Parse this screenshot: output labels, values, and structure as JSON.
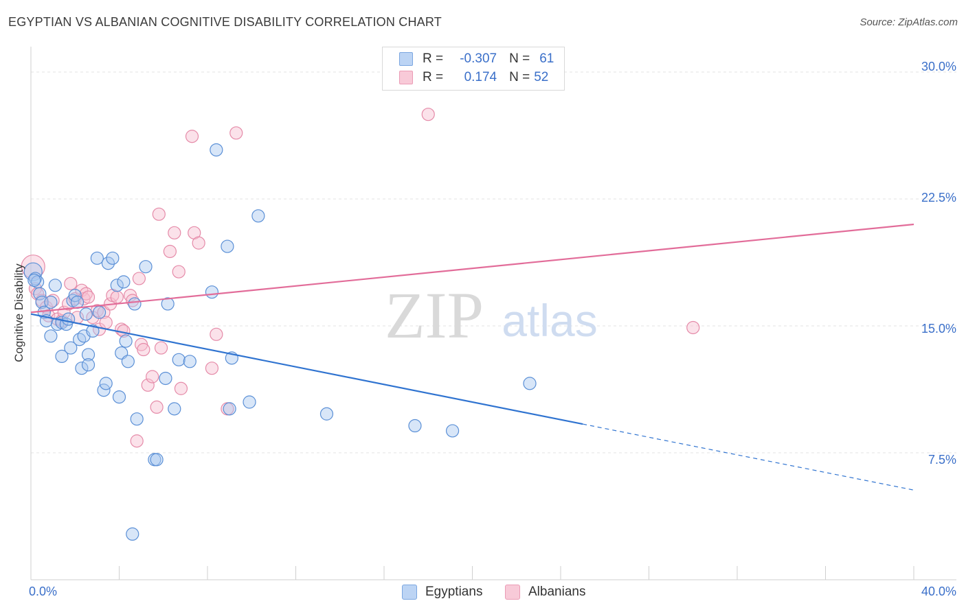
{
  "title": "EGYPTIAN VS ALBANIAN COGNITIVE DISABILITY CORRELATION CHART",
  "source": "Source: ZipAtlas.com",
  "watermark": {
    "zip": "ZIP",
    "atlas": "atlas"
  },
  "legend_top": {
    "rows": [
      {
        "r_label": "R =",
        "r_value": "-0.307",
        "n_label": "N =",
        "n_value": "61"
      },
      {
        "r_label": "R =",
        "r_value": "0.174",
        "n_label": "N =",
        "n_value": "52"
      }
    ]
  },
  "colors": {
    "egyptians_fill": "#a9c8f0",
    "egyptians_stroke": "#5a8fd6",
    "egyptians_line": "#2f73d0",
    "albanians_fill": "#f6bfd0",
    "albanians_stroke": "#e58aa8",
    "albanians_line": "#e26c99",
    "axis_label": "#3a6fc9",
    "grid": "#e3e3e3"
  },
  "chart_data": {
    "type": "scatter",
    "title": "EGYPTIAN VS ALBANIAN COGNITIVE DISABILITY CORRELATION CHART",
    "xlabel": "",
    "ylabel": "Cognitive Disability",
    "xlim": [
      0,
      40
    ],
    "ylim": [
      0,
      31.5
    ],
    "x_tick_labels": [
      "0.0%",
      "40.0%"
    ],
    "y_ticks": [
      7.5,
      15.0,
      22.5,
      30.0
    ],
    "y_tick_labels": [
      "7.5%",
      "15.0%",
      "22.5%",
      "30.0%"
    ],
    "grid": true,
    "legend_position": "top-center",
    "series": [
      {
        "name": "Egyptians",
        "r": -0.307,
        "n": 61,
        "trend": {
          "x": [
            0,
            25
          ],
          "y": [
            15.7,
            9.2
          ],
          "dashed_extension": {
            "x": [
              25,
              40
            ],
            "y": [
              9.2,
              5.3
            ]
          }
        },
        "points": [
          [
            0.1,
            18.2
          ],
          [
            0.2,
            17.8
          ],
          [
            0.3,
            17.6
          ],
          [
            0.4,
            16.9
          ],
          [
            0.5,
            16.4
          ],
          [
            0.6,
            15.8
          ],
          [
            0.7,
            15.3
          ],
          [
            0.9,
            16.4
          ],
          [
            0.9,
            14.4
          ],
          [
            1.1,
            17.4
          ],
          [
            1.2,
            15.1
          ],
          [
            1.4,
            15.2
          ],
          [
            1.4,
            13.2
          ],
          [
            1.6,
            15.1
          ],
          [
            1.7,
            15.4
          ],
          [
            1.8,
            13.7
          ],
          [
            1.9,
            16.5
          ],
          [
            2.0,
            16.8
          ],
          [
            2.1,
            16.4
          ],
          [
            2.2,
            14.2
          ],
          [
            2.3,
            12.5
          ],
          [
            2.4,
            14.4
          ],
          [
            2.5,
            15.7
          ],
          [
            2.6,
            13.3
          ],
          [
            2.6,
            12.7
          ],
          [
            2.8,
            14.7
          ],
          [
            3.0,
            19.0
          ],
          [
            3.1,
            15.8
          ],
          [
            3.3,
            11.2
          ],
          [
            3.4,
            11.6
          ],
          [
            3.5,
            18.7
          ],
          [
            3.7,
            19.0
          ],
          [
            3.9,
            17.4
          ],
          [
            4.0,
            10.8
          ],
          [
            4.1,
            13.4
          ],
          [
            4.2,
            17.6
          ],
          [
            4.3,
            14.1
          ],
          [
            4.4,
            12.9
          ],
          [
            4.6,
            2.7
          ],
          [
            4.7,
            16.3
          ],
          [
            4.8,
            9.5
          ],
          [
            5.2,
            18.5
          ],
          [
            5.6,
            7.1
          ],
          [
            5.7,
            7.1
          ],
          [
            6.1,
            11.9
          ],
          [
            6.2,
            16.3
          ],
          [
            6.5,
            10.1
          ],
          [
            6.7,
            13.0
          ],
          [
            7.2,
            12.9
          ],
          [
            8.2,
            17.0
          ],
          [
            8.4,
            25.4
          ],
          [
            8.9,
            19.7
          ],
          [
            9.0,
            10.1
          ],
          [
            9.1,
            13.1
          ],
          [
            9.9,
            10.5
          ],
          [
            10.3,
            21.5
          ],
          [
            13.4,
            9.8
          ],
          [
            17.4,
            9.1
          ],
          [
            19.1,
            8.8
          ],
          [
            22.6,
            11.6
          ],
          [
            0.15,
            17.7
          ]
        ]
      },
      {
        "name": "Albanians",
        "r": 0.174,
        "n": 52,
        "trend": {
          "x": [
            0,
            40
          ],
          "y": [
            15.8,
            21.0
          ]
        },
        "points": [
          [
            0.1,
            18.5
          ],
          [
            0.2,
            17.2
          ],
          [
            0.3,
            16.9
          ],
          [
            0.5,
            16.5
          ],
          [
            0.7,
            16.1
          ],
          [
            0.8,
            15.6
          ],
          [
            1.0,
            16.5
          ],
          [
            1.2,
            15.4
          ],
          [
            1.4,
            15.3
          ],
          [
            1.5,
            15.8
          ],
          [
            1.7,
            16.3
          ],
          [
            1.8,
            17.5
          ],
          [
            2.0,
            16.6
          ],
          [
            2.1,
            15.5
          ],
          [
            2.3,
            17.1
          ],
          [
            2.4,
            16.6
          ],
          [
            2.5,
            16.9
          ],
          [
            2.6,
            16.7
          ],
          [
            2.8,
            15.5
          ],
          [
            3.0,
            15.9
          ],
          [
            3.1,
            14.8
          ],
          [
            3.3,
            15.8
          ],
          [
            3.4,
            15.2
          ],
          [
            3.6,
            16.3
          ],
          [
            3.7,
            16.8
          ],
          [
            3.9,
            16.7
          ],
          [
            4.1,
            14.8
          ],
          [
            4.2,
            14.7
          ],
          [
            4.5,
            16.8
          ],
          [
            4.6,
            16.5
          ],
          [
            4.8,
            8.2
          ],
          [
            4.9,
            17.8
          ],
          [
            5.0,
            13.9
          ],
          [
            5.1,
            13.6
          ],
          [
            5.3,
            11.5
          ],
          [
            5.5,
            12.0
          ],
          [
            5.7,
            10.2
          ],
          [
            5.8,
            21.6
          ],
          [
            5.9,
            13.7
          ],
          [
            6.3,
            19.4
          ],
          [
            6.5,
            20.5
          ],
          [
            6.7,
            18.2
          ],
          [
            6.8,
            11.3
          ],
          [
            7.3,
            26.2
          ],
          [
            7.4,
            20.5
          ],
          [
            7.6,
            19.9
          ],
          [
            8.2,
            12.5
          ],
          [
            8.4,
            14.5
          ],
          [
            8.9,
            10.1
          ],
          [
            9.3,
            26.4
          ],
          [
            18.0,
            27.5
          ],
          [
            30.0,
            14.9
          ]
        ]
      }
    ]
  },
  "bottom_legend": {
    "items": [
      "Egyptians",
      "Albanians"
    ]
  },
  "x_axis": {
    "left_label": "0.0%",
    "right_label": "40.0%"
  },
  "y_axis": {
    "title": "Cognitive Disability"
  }
}
